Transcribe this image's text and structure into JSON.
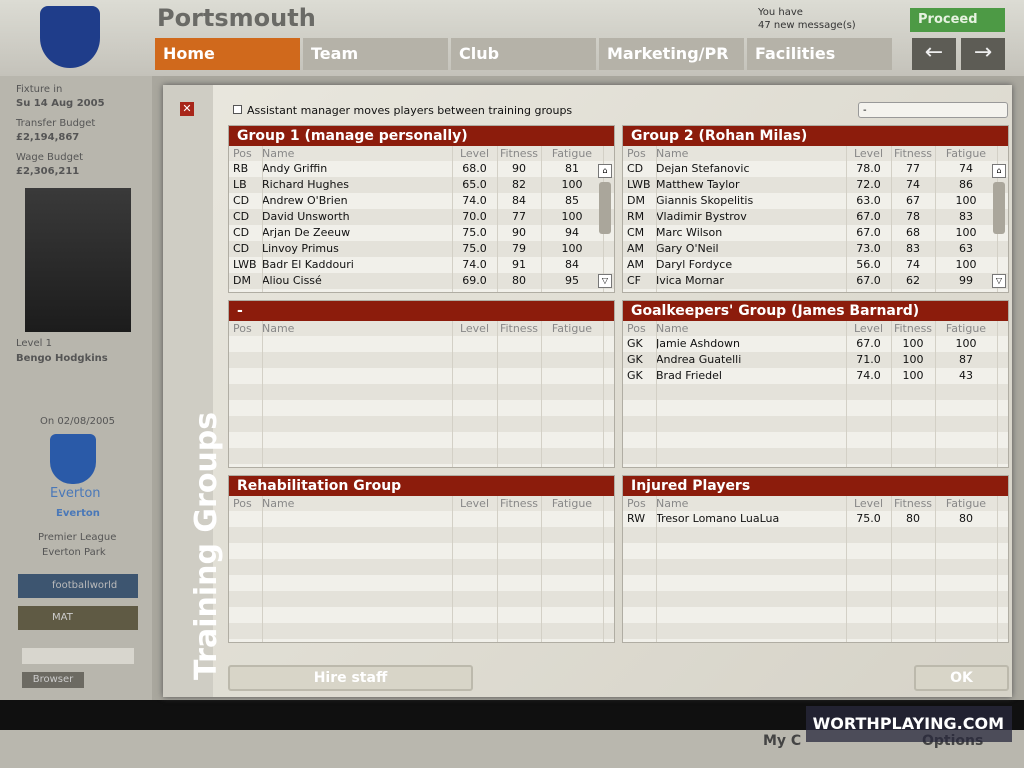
{
  "header": {
    "club": "Portsmouth",
    "messages": [
      "You have",
      "47 new message(s)"
    ],
    "proceed": "Proceed",
    "tabs": [
      "Home",
      "Team",
      "Club",
      "Marketing/PR",
      "Facilities"
    ]
  },
  "sidebar": {
    "fixture_label": "Fixture in",
    "fixture_date": "Su 14 Aug 2005",
    "transfer_label": "Transfer Budget",
    "transfer_budget": "£2,194,867",
    "wage_label": "Wage Budget",
    "wage_budget": "£2,306,211",
    "manager_level": "Level 1",
    "manager_name": "Bengo Hodgkins",
    "next_match": "On 02/08/2005",
    "opponent": "Everton",
    "opponent_short": "Everton",
    "league": "Premier League",
    "stadium": "Everton Park",
    "buttons": [
      "footballworld",
      "MAT"
    ],
    "browser": "Browser"
  },
  "dialog": {
    "title": "Training Groups",
    "option": "Assistant manager moves players between training groups",
    "dropdown": "-",
    "columns": [
      "Pos",
      "Name",
      "Level",
      "Fitness",
      "Fatigue"
    ],
    "groups": [
      {
        "title": "Group 1 (manage personally)",
        "rows": [
          [
            "RB",
            "Andy Griffin",
            "68.0",
            "90",
            "81"
          ],
          [
            "LB",
            "Richard Hughes",
            "65.0",
            "82",
            "100"
          ],
          [
            "CD",
            "Andrew O'Brien",
            "74.0",
            "84",
            "85"
          ],
          [
            "CD",
            "David Unsworth",
            "70.0",
            "77",
            "100"
          ],
          [
            "CD",
            "Arjan De Zeeuw",
            "75.0",
            "90",
            "94"
          ],
          [
            "CD",
            "Linvoy Primus",
            "75.0",
            "79",
            "100"
          ],
          [
            "LWB",
            "Badr El Kaddouri",
            "74.0",
            "91",
            "84"
          ],
          [
            "DM",
            "Aliou Cissé",
            "69.0",
            "80",
            "95"
          ]
        ]
      },
      {
        "title": "Group 2 (Rohan Milas)",
        "rows": [
          [
            "CD",
            "Dejan Stefanovic",
            "78.0",
            "77",
            "74"
          ],
          [
            "LWB",
            "Matthew Taylor",
            "72.0",
            "74",
            "86"
          ],
          [
            "DM",
            "Giannis Skopelitis",
            "63.0",
            "67",
            "100"
          ],
          [
            "RM",
            "Vladimir Bystrov",
            "67.0",
            "78",
            "83"
          ],
          [
            "CM",
            "Marc Wilson",
            "67.0",
            "68",
            "100"
          ],
          [
            "AM",
            "Gary O'Neil",
            "73.0",
            "83",
            "63"
          ],
          [
            "AM",
            "Daryl Fordyce",
            "56.0",
            "74",
            "100"
          ],
          [
            "CF",
            "Ivica Mornar",
            "67.0",
            "62",
            "99"
          ]
        ]
      },
      {
        "title": "-",
        "rows": []
      },
      {
        "title": "Goalkeepers' Group (James Barnard)",
        "rows": [
          [
            "GK",
            "Jamie Ashdown",
            "67.0",
            "100",
            "100"
          ],
          [
            "GK",
            "Andrea Guatelli",
            "71.0",
            "100",
            "87"
          ],
          [
            "GK",
            "Brad Friedel",
            "74.0",
            "100",
            "43"
          ]
        ]
      },
      {
        "title": "Rehabilitation Group",
        "rows": []
      },
      {
        "title": "Injured Players",
        "rows": [
          [
            "RW",
            "Tresor Lomano LuaLua",
            "75.0",
            "80",
            "80"
          ]
        ]
      }
    ],
    "buttons": [
      "Hire staff",
      "OK"
    ]
  },
  "footer": {
    "left": "My C",
    "right": "Options",
    "watermark": "WORTHPLAYING.COM"
  }
}
